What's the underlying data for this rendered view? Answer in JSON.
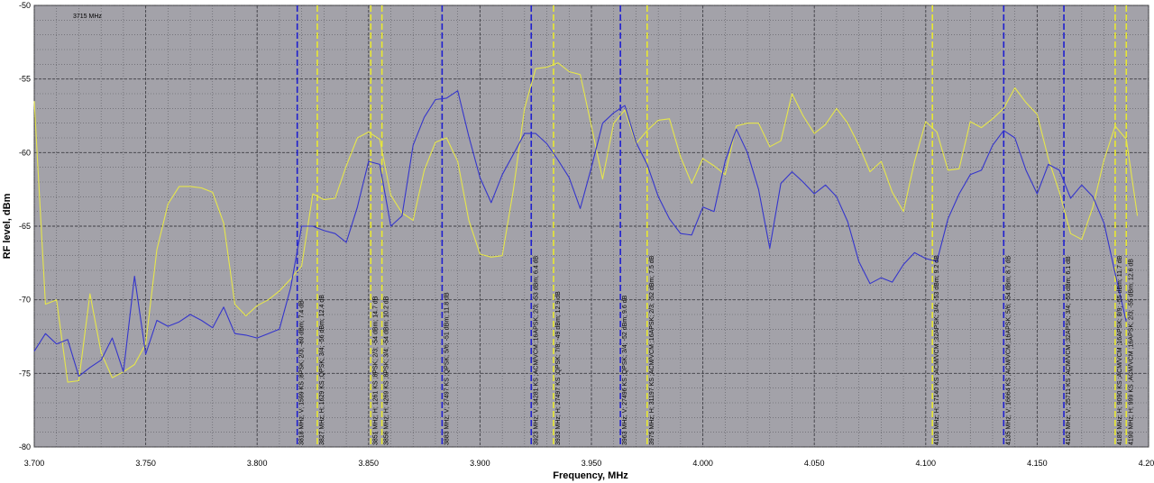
{
  "chart_data": {
    "type": "line",
    "title": "",
    "xlabel": "Frequency, MHz",
    "ylabel": "RF level, dBm",
    "corner_label": "3715 MHz",
    "xlim": [
      3.7,
      4.2
    ],
    "ylim": [
      -80,
      -50
    ],
    "xticks": [
      "3.700",
      "3.750",
      "3.800",
      "3.850",
      "3.900",
      "3.950",
      "4.000",
      "4.050",
      "4.100",
      "4.150",
      "4.200"
    ],
    "yticks": [
      "-50",
      "-55",
      "-60",
      "-65",
      "-70",
      "-75",
      "-80"
    ],
    "grid": true,
    "colors": {
      "plot_bg": "#a3a2a9",
      "grid": "#5a5a60",
      "yellow": "#e6e64a",
      "blue": "#3535cc",
      "marker_blue": "#1f1fd0",
      "marker_yellow": "#e8e830"
    },
    "series": [
      {
        "color": "yellow",
        "x": [
          3.7,
          3.705,
          3.71,
          3.715,
          3.72,
          3.725,
          3.73,
          3.735,
          3.74,
          3.745,
          3.75,
          3.755,
          3.76,
          3.765,
          3.77,
          3.775,
          3.78,
          3.785,
          3.79,
          3.795,
          3.8,
          3.805,
          3.81,
          3.815,
          3.82,
          3.825,
          3.83,
          3.835,
          3.84,
          3.845,
          3.85,
          3.855,
          3.86,
          3.865,
          3.87,
          3.875,
          3.88,
          3.885,
          3.89,
          3.895,
          3.9,
          3.905,
          3.91,
          3.915,
          3.92,
          3.925,
          3.93,
          3.935,
          3.94,
          3.945,
          3.95,
          3.955,
          3.96,
          3.965,
          3.97,
          3.975,
          3.98,
          3.985,
          3.99,
          3.995,
          4.0,
          4.005,
          4.01,
          4.015,
          4.02,
          4.025,
          4.03,
          4.035,
          4.04,
          4.045,
          4.05,
          4.055,
          4.06,
          4.065,
          4.07,
          4.075,
          4.08,
          4.085,
          4.09,
          4.095,
          4.1,
          4.105,
          4.11,
          4.115,
          4.12,
          4.125,
          4.13,
          4.135,
          4.14,
          4.145,
          4.15,
          4.155,
          4.16,
          4.165,
          4.17,
          4.175,
          4.18,
          4.185,
          4.19,
          4.195
        ],
        "y": [
          -56.5,
          -70.3,
          -70.0,
          -75.6,
          -75.5,
          -69.6,
          -73.6,
          -75.3,
          -74.9,
          -74.4,
          -73.0,
          -66.6,
          -63.5,
          -62.3,
          -62.3,
          -62.4,
          -62.7,
          -64.8,
          -70.3,
          -71.1,
          -70.4,
          -70.0,
          -69.4,
          -68.6,
          -67.7,
          -62.8,
          -63.2,
          -63.1,
          -60.9,
          -59.0,
          -58.6,
          -59.1,
          -62.9,
          -64.1,
          -64.6,
          -61.2,
          -59.3,
          -59.0,
          -60.6,
          -64.6,
          -66.9,
          -67.1,
          -67.0,
          -62.5,
          -57.0,
          -54.3,
          -54.2,
          -53.9,
          -54.5,
          -54.7,
          -58.2,
          -61.8,
          -58.0,
          -57.1,
          -59.4,
          -58.5,
          -57.8,
          -57.7,
          -60.3,
          -62.1,
          -60.4,
          -60.9,
          -61.5,
          -58.2,
          -58.0,
          -58.0,
          -59.6,
          -59.2,
          -56.0,
          -57.5,
          -58.7,
          -58.1,
          -57.0,
          -58.0,
          -59.5,
          -61.3,
          -60.6,
          -62.7,
          -64.0,
          -60.6,
          -57.9,
          -58.6,
          -61.2,
          -61.1,
          -57.9,
          -58.3,
          -57.7,
          -57.0,
          -55.6,
          -56.6,
          -57.4,
          -60.4,
          -62.7,
          -65.5,
          -65.9,
          -63.7,
          -60.5,
          -58.2,
          -59.1,
          -64.3
        ]
      },
      {
        "color": "blue",
        "x": [
          3.7,
          3.705,
          3.71,
          3.715,
          3.72,
          3.725,
          3.73,
          3.735,
          3.74,
          3.745,
          3.75,
          3.755,
          3.76,
          3.765,
          3.77,
          3.775,
          3.78,
          3.785,
          3.79,
          3.795,
          3.8,
          3.805,
          3.81,
          3.815,
          3.82,
          3.825,
          3.83,
          3.835,
          3.84,
          3.845,
          3.85,
          3.855,
          3.86,
          3.865,
          3.87,
          3.875,
          3.88,
          3.885,
          3.89,
          3.895,
          3.9,
          3.905,
          3.91,
          3.915,
          3.92,
          3.925,
          3.93,
          3.935,
          3.94,
          3.945,
          3.95,
          3.955,
          3.96,
          3.965,
          3.97,
          3.975,
          3.98,
          3.985,
          3.99,
          3.995,
          4.0,
          4.005,
          4.01,
          4.015,
          4.02,
          4.025,
          4.03,
          4.035,
          4.04,
          4.045,
          4.05,
          4.055,
          4.06,
          4.065,
          4.07,
          4.075,
          4.08,
          4.085,
          4.09,
          4.095,
          4.1,
          4.105,
          4.11,
          4.115,
          4.12,
          4.125,
          4.13,
          4.135,
          4.14,
          4.145,
          4.15,
          4.155,
          4.16,
          4.165,
          4.17,
          4.175,
          4.18,
          4.185,
          4.19
        ],
        "y": [
          -73.5,
          -72.3,
          -73.0,
          -72.7,
          -75.2,
          -74.6,
          -74.1,
          -72.6,
          -74.9,
          -68.4,
          -73.7,
          -71.4,
          -71.8,
          -71.5,
          -71.0,
          -71.4,
          -71.9,
          -70.5,
          -72.3,
          -72.4,
          -72.6,
          -72.3,
          -72.0,
          -69.2,
          -65.0,
          -65.0,
          -65.3,
          -65.5,
          -66.1,
          -63.7,
          -60.6,
          -60.8,
          -65.0,
          -64.3,
          -59.5,
          -57.6,
          -56.4,
          -56.3,
          -55.8,
          -58.9,
          -61.7,
          -63.4,
          -61.5,
          -60.1,
          -58.7,
          -58.7,
          -59.4,
          -60.5,
          -61.7,
          -63.8,
          -61.0,
          -58.0,
          -57.3,
          -56.8,
          -59.3,
          -60.8,
          -63.0,
          -64.5,
          -65.5,
          -65.6,
          -63.7,
          -64.0,
          -60.6,
          -58.4,
          -60.0,
          -62.5,
          -66.5,
          -62.1,
          -61.3,
          -62.0,
          -62.8,
          -62.2,
          -63.0,
          -64.7,
          -67.4,
          -68.9,
          -68.5,
          -68.8,
          -67.6,
          -66.8,
          -67.2,
          -67.4,
          -64.5,
          -62.8,
          -61.5,
          -61.2,
          -59.5,
          -58.5,
          -59.0,
          -61.2,
          -62.8,
          -60.8,
          -61.2,
          -63.1,
          -62.2,
          -63.0,
          -64.8,
          -68.2,
          -71.5
        ]
      }
    ],
    "markers": [
      {
        "x": 3.818,
        "color": "blue",
        "label": "3818 MHz; V; 1599 KS ;8PSK; 2/3; -60 dBm; 7.4 dB"
      },
      {
        "x": 3.827,
        "color": "yellow",
        "label": "3827 MHz; H; 1629 KS ;QPSK; 3/4; -56 dBm; 12.4 dB"
      },
      {
        "x": 3.851,
        "color": "yellow",
        "label": "3851 MHz; H; 1261 KS ;8PSK; 2/3; -54 dBm; 14.7 dB"
      },
      {
        "x": 3.856,
        "color": "yellow",
        "label": "3856 MHz; H; 4269 KS ;8PSK; 3/4; -54 dBm; 10.2 dB"
      },
      {
        "x": 3.883,
        "color": "blue",
        "label": "3883 MHz; V; 27497 KS ;QPSK; 5/6; -51 dBm; 11.8 dB"
      },
      {
        "x": 3.923,
        "color": "blue",
        "label": "3923 MHz; V; 34281 KS ;ACM/VCM ;16APSK; 2/3; -53 dBm; 6.4 dB"
      },
      {
        "x": 3.933,
        "color": "yellow",
        "label": "3933 MHz; H; 27497 KS ;QPSK; 7/8; -49 dBm; 12.9 dB"
      },
      {
        "x": 3.963,
        "color": "blue",
        "label": "3963 MHz; V; 27496 KS ;QPSK; 3/4; -52 dBm; 9.6 dB"
      },
      {
        "x": 3.975,
        "color": "yellow",
        "label": "3975 MHz; H; 31197 KS ;ACM/VCM ;16APSK; 2/3; -52 dBm; 7.5 dB"
      },
      {
        "x": 4.103,
        "color": "yellow",
        "label": "4103 MHz; H; 17140 KS ;ACM/VCM ;32APSK; 3/4; -53 dBm; 9.2 dB"
      },
      {
        "x": 4.135,
        "color": "blue",
        "label": "4135 MHz; V; 16664 KS ;ACM/VCM ;16APSK; 5/6; -54 dBm; 8.7 dB"
      },
      {
        "x": 4.162,
        "color": "blue",
        "label": "4162 MHz; V; 25711 KS ;ACM/VCM ;32APSK; 3/4; -55 dBm; 6.1 dB"
      },
      {
        "x": 4.185,
        "color": "yellow",
        "label": "4185 MHz; H; 9090 KS ;ACM/VCM ;16APSK; 8/9; -55 dBm; 11.7 dB"
      },
      {
        "x": 4.19,
        "color": "yellow",
        "label": "4190 MHz; H; 999 KS ;ACM/VCM ;16APSK; 2/3; -55 dBm; 12.6 dB"
      }
    ]
  }
}
